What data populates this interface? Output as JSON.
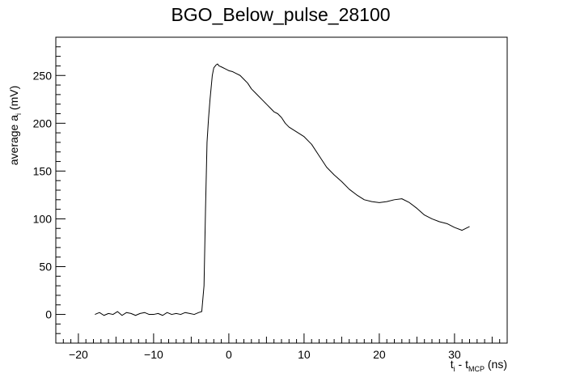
{
  "chart_data": {
    "type": "line",
    "title": "BGO_Below_pulse_28100",
    "xlabel": {
      "t": "t",
      "t_sub": "i",
      "dash": " - t",
      "mcp_sub": "MCP",
      "unit": " (ns)"
    },
    "ylabel": {
      "text": "average a",
      "sub": "i",
      "unit": "  (mV)"
    },
    "xlim": [
      -23,
      37
    ],
    "ylim": [
      -30,
      290
    ],
    "x_ticks": [
      -20,
      -10,
      0,
      10,
      20,
      30
    ],
    "x_tick_labels": [
      "−20",
      "−10",
      "0",
      "10",
      "20",
      "30"
    ],
    "y_ticks": [
      0,
      50,
      100,
      150,
      200,
      250
    ],
    "y_tick_labels": [
      "0",
      "50",
      "100",
      "150",
      "200",
      "250"
    ],
    "grid": false,
    "legend": "none",
    "line_color": "#000000",
    "series": [
      {
        "x": [
          -17.8,
          -17.2,
          -16.6,
          -16.0,
          -15.4,
          -14.8,
          -14.2,
          -13.6,
          -13.0,
          -12.4,
          -11.8,
          -11.2,
          -10.6,
          -10.0,
          -9.4,
          -8.8,
          -8.2,
          -7.6,
          -7.0,
          -6.4,
          -5.8,
          -5.2,
          -4.6,
          -4.0,
          -3.6,
          -3.3,
          -3.1,
          -2.9,
          -2.7,
          -2.5,
          -2.2,
          -2.0,
          -1.7,
          -1.5,
          -1.3,
          -1.0,
          -0.5,
          0.0,
          0.5,
          1.0,
          1.5,
          2.0,
          2.5,
          3.0,
          3.5,
          4.0,
          4.5,
          5.0,
          5.5,
          6.0,
          6.5,
          7.0,
          7.5,
          8.0,
          9.0,
          10.0,
          11.0,
          12.0,
          13.0,
          14.0,
          15.0,
          16.0,
          17.0,
          18.0,
          19.0,
          20.0,
          21.0,
          22.0,
          23.0,
          24.0,
          25.0,
          26.0,
          27.0,
          28.0,
          29.0,
          30.0,
          31.0,
          32.0
        ],
        "y": [
          0,
          2,
          -1,
          1,
          0,
          3,
          -1,
          2,
          1,
          -1,
          1,
          2,
          0,
          0,
          1,
          -1,
          2,
          0,
          1,
          0,
          2,
          1,
          0,
          2,
          3,
          30,
          110,
          180,
          205,
          225,
          250,
          258,
          261,
          262,
          260,
          259,
          257,
          255,
          254,
          252,
          250,
          246,
          242,
          236,
          232,
          228,
          224,
          220,
          216,
          212,
          210,
          206,
          200,
          196,
          191,
          186,
          178,
          166,
          154,
          146,
          139,
          131,
          125,
          120,
          118,
          117,
          118,
          120,
          121,
          117,
          111,
          104,
          100,
          97,
          95,
          91,
          88,
          92
        ]
      }
    ]
  }
}
